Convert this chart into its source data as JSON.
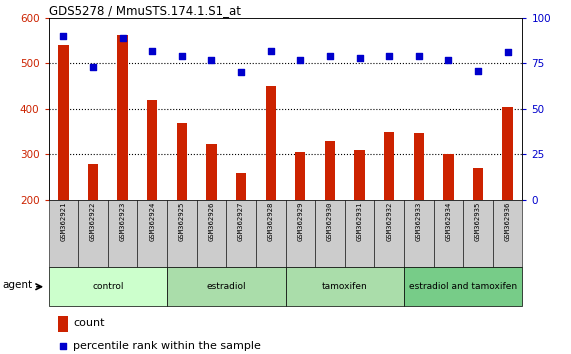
{
  "title": "GDS5278 / MmuSTS.174.1.S1_at",
  "samples": [
    "GSM362921",
    "GSM362922",
    "GSM362923",
    "GSM362924",
    "GSM362925",
    "GSM362926",
    "GSM362927",
    "GSM362928",
    "GSM362929",
    "GSM362930",
    "GSM362931",
    "GSM362932",
    "GSM362933",
    "GSM362934",
    "GSM362935",
    "GSM362936"
  ],
  "counts": [
    540,
    278,
    562,
    420,
    370,
    322,
    260,
    450,
    305,
    330,
    310,
    350,
    348,
    300,
    270,
    405
  ],
  "percentile": [
    90,
    73,
    89,
    82,
    79,
    77,
    70,
    82,
    77,
    79,
    78,
    79,
    79,
    77,
    71,
    81
  ],
  "bar_color": "#cc2200",
  "dot_color": "#0000cc",
  "ylim_left": [
    200,
    600
  ],
  "ylim_right": [
    0,
    100
  ],
  "yticks_left": [
    200,
    300,
    400,
    500,
    600
  ],
  "yticks_right": [
    0,
    25,
    50,
    75,
    100
  ],
  "groups": [
    {
      "label": "control",
      "start": 0,
      "end": 4
    },
    {
      "label": "estradiol",
      "start": 4,
      "end": 8
    },
    {
      "label": "tamoxifen",
      "start": 8,
      "end": 12
    },
    {
      "label": "estradiol and tamoxifen",
      "start": 12,
      "end": 16
    }
  ],
  "group_colors": [
    "#ccffcc",
    "#aaddaa",
    "#aaddaa",
    "#77cc88"
  ],
  "agent_label": "agent",
  "legend_count_label": "count",
  "legend_pct_label": "percentile rank within the sample",
  "bar_width": 0.35,
  "left_tick_color": "#cc2200",
  "right_tick_color": "#0000cc"
}
